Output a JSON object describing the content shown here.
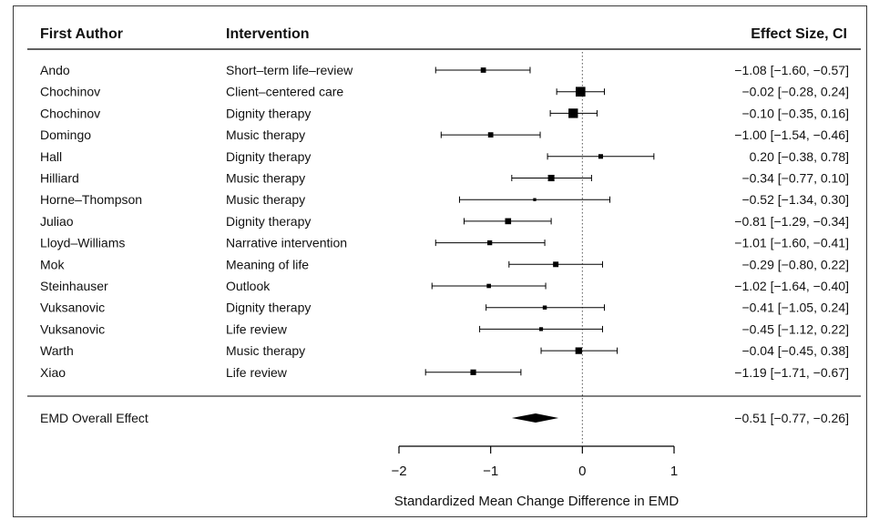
{
  "chart_data": {
    "type": "forest",
    "columns": {
      "author": "First Author",
      "intervention": "Intervention",
      "effect": "Effect Size, CI"
    },
    "studies": [
      {
        "author": "Ando",
        "intervention": "Short–term life–review",
        "est": -1.08,
        "lo": -1.6,
        "hi": -0.57,
        "ci_text": "−1.08 [−1.60, −0.57]",
        "weight": 0.34
      },
      {
        "author": "Chochinov",
        "intervention": "Client–centered care",
        "est": -0.02,
        "lo": -0.28,
        "hi": 0.24,
        "ci_text": "−0.02 [−0.28,  0.24]",
        "weight": 0.78
      },
      {
        "author": "Chochinov",
        "intervention": "Dignity therapy",
        "est": -0.1,
        "lo": -0.35,
        "hi": 0.16,
        "ci_text": "−0.10 [−0.35,  0.16]",
        "weight": 0.76
      },
      {
        "author": "Domingo",
        "intervention": "Music therapy",
        "est": -1.0,
        "lo": -1.54,
        "hi": -0.46,
        "ci_text": "−1.00 [−1.54, −0.46]",
        "weight": 0.34
      },
      {
        "author": "Hall",
        "intervention": "Dignity therapy",
        "est": 0.2,
        "lo": -0.38,
        "hi": 0.78,
        "ci_text": "0.20 [−0.38,  0.78]",
        "weight": 0.28
      },
      {
        "author": "Hilliard",
        "intervention": "Music therapy",
        "est": -0.34,
        "lo": -0.77,
        "hi": 0.1,
        "ci_text": "−0.34 [−0.77,  0.10]",
        "weight": 0.46
      },
      {
        "author": "Horne–Thompson",
        "intervention": "Music therapy",
        "est": -0.52,
        "lo": -1.34,
        "hi": 0.3,
        "ci_text": "−0.52 [−1.34,  0.30]",
        "weight": 0.12
      },
      {
        "author": "Juliao",
        "intervention": "Dignity therapy",
        "est": -0.81,
        "lo": -1.29,
        "hi": -0.34,
        "ci_text": "−0.81 [−1.29, −0.34]",
        "weight": 0.42
      },
      {
        "author": "Lloyd–Williams",
        "intervention": "Narrative intervention",
        "est": -1.01,
        "lo": -1.6,
        "hi": -0.41,
        "ci_text": "−1.01 [−1.60, −0.41]",
        "weight": 0.3
      },
      {
        "author": "Mok",
        "intervention": "Meaning of life",
        "est": -0.29,
        "lo": -0.8,
        "hi": 0.22,
        "ci_text": "−0.29 [−0.80,  0.22]",
        "weight": 0.36
      },
      {
        "author": "Steinhauser",
        "intervention": "Outlook",
        "est": -1.02,
        "lo": -1.64,
        "hi": -0.4,
        "ci_text": "−1.02 [−1.64, −0.40]",
        "weight": 0.24
      },
      {
        "author": "Vuksanovic",
        "intervention": "Dignity therapy",
        "est": -0.41,
        "lo": -1.05,
        "hi": 0.24,
        "ci_text": "−0.41 [−1.05,  0.24]",
        "weight": 0.22
      },
      {
        "author": "Vuksanovic",
        "intervention": "Life review",
        "est": -0.45,
        "lo": -1.12,
        "hi": 0.22,
        "ci_text": "−0.45 [−1.12,  0.22]",
        "weight": 0.2
      },
      {
        "author": "Warth",
        "intervention": "Music therapy",
        "est": -0.04,
        "lo": -0.45,
        "hi": 0.38,
        "ci_text": "−0.04 [−0.45,  0.38]",
        "weight": 0.48
      },
      {
        "author": "Xiao",
        "intervention": "Life review",
        "est": -1.19,
        "lo": -1.71,
        "hi": -0.67,
        "ci_text": "−1.19 [−1.71, −0.67]",
        "weight": 0.38
      }
    ],
    "overall": {
      "label": "EMD Overall Effect",
      "est": -0.51,
      "lo": -0.77,
      "hi": -0.26,
      "ci_text": "−0.51 [−0.77, −0.26]"
    },
    "x_axis": {
      "ticks": [
        -2,
        -1,
        0,
        1
      ],
      "tick_labels": [
        "−2",
        "−1",
        "0",
        "1"
      ],
      "xlim": [
        -2,
        1
      ],
      "label": "Standardized Mean Change Difference in EMD"
    },
    "null_line": 0,
    "colors": {
      "ink": "#000000",
      "text": "#111111",
      "frame": "#3a3a3a"
    }
  }
}
